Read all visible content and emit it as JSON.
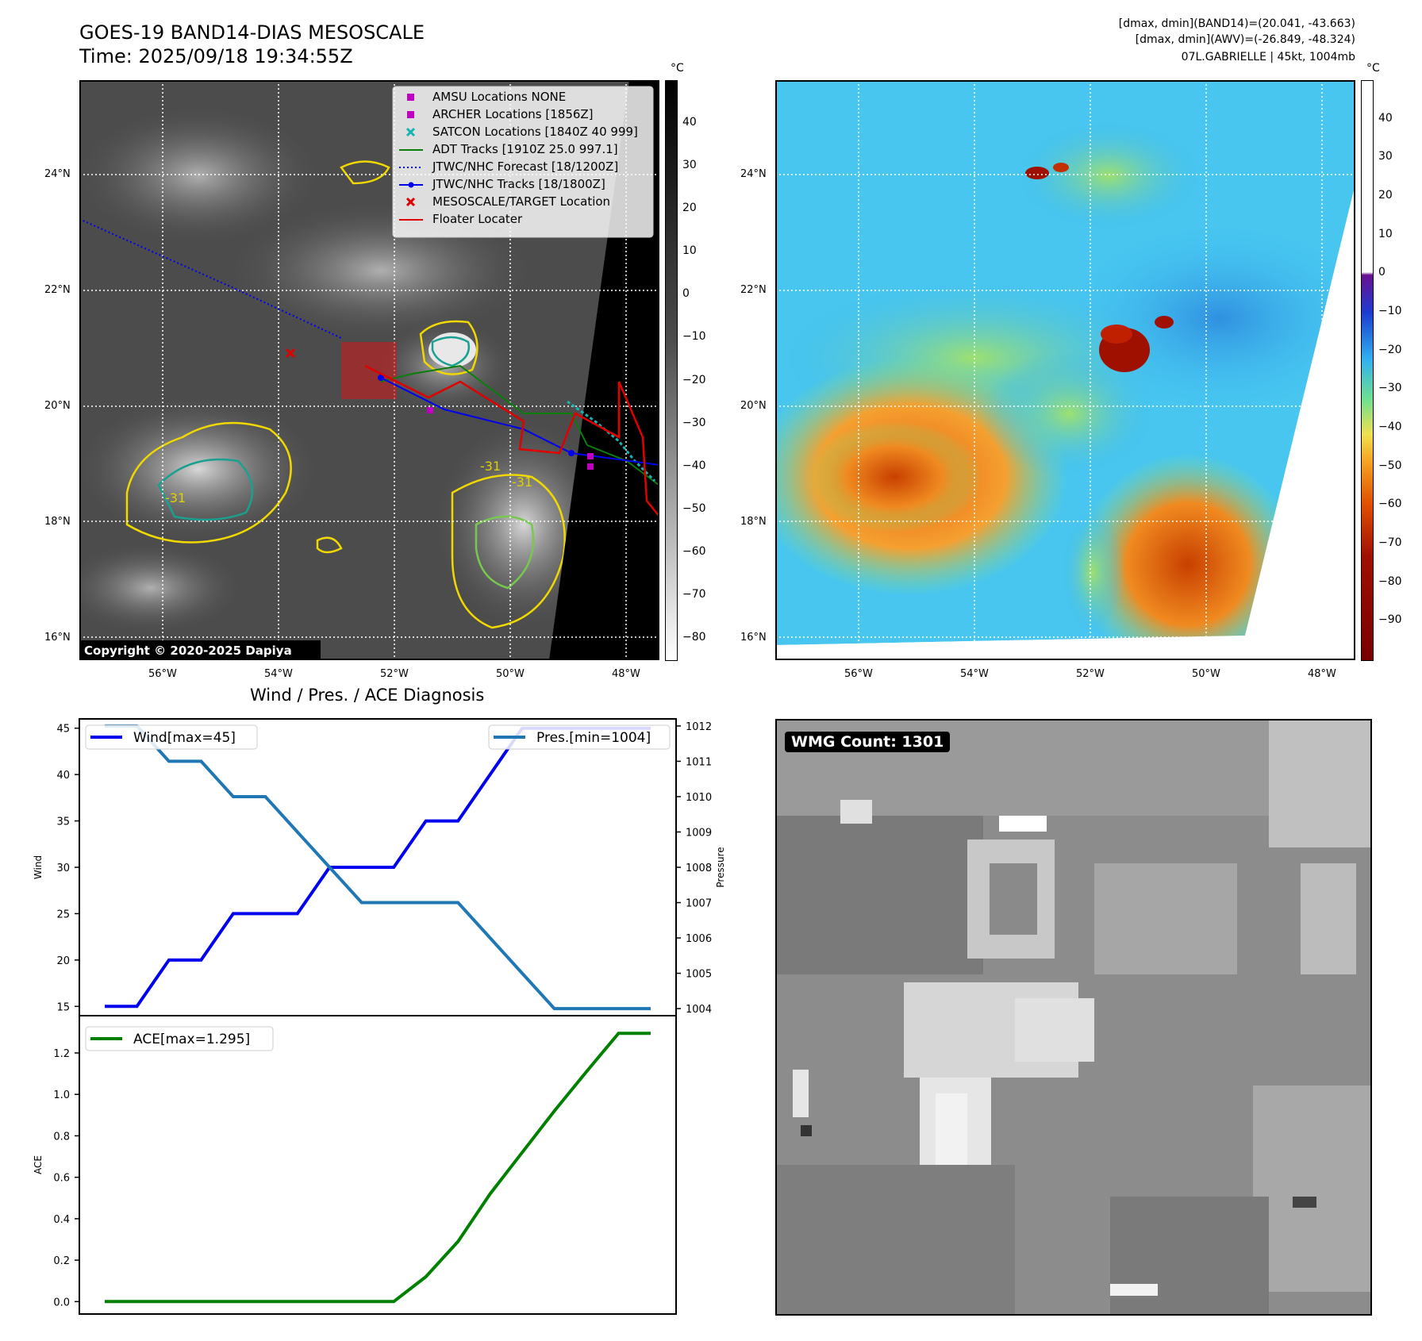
{
  "header": {
    "title_line1": "GOES-19 BAND14-DIAS MESOSCALE",
    "title_line2": "Time: 2025/09/18 19:34:55Z",
    "right_line1": "[dmax, dmin](BAND14)=(20.041, -43.663)",
    "right_line2": "[dmax, dmin](AWV)=(-26.849, -48.324)",
    "right_line3": "07L.GABRIELLE | 45kt, 1004mb"
  },
  "map_left": {
    "lat_labels": [
      "24°N",
      "22°N",
      "20°N",
      "18°N",
      "16°N"
    ],
    "lon_labels": [
      "56°W",
      "54°W",
      "52°W",
      "50°W",
      "48°W"
    ],
    "copyright": "Copyright © 2020-2025 Dapiya",
    "contour_labels": [
      "-31",
      "-31",
      "-31"
    ],
    "legend": [
      {
        "label": "AMSU Locations NONE",
        "color": "#c000c0",
        "marker": "square"
      },
      {
        "label": "ARCHER Locations [1856Z]",
        "color": "#c000c0",
        "marker": "square"
      },
      {
        "label": "SATCON Locations [1840Z 40 999]",
        "color": "#17b3b3",
        "marker": "x"
      },
      {
        "label": "ADT Tracks [1910Z 25.0 997.1]",
        "color": "#0a7d0a",
        "marker": "line"
      },
      {
        "label": "JTWC/NHC Forecast [18/1200Z]",
        "color": "#0000ee",
        "marker": "dotted"
      },
      {
        "label": "JTWC/NHC Tracks [18/1800Z]",
        "color": "#0000ee",
        "marker": "line-dot"
      },
      {
        "label": "MESOSCALE/TARGET Location",
        "color": "#e00000",
        "marker": "x"
      },
      {
        "label": "Floater Locater",
        "color": "#e00000",
        "marker": "line"
      }
    ],
    "colorbar": {
      "unit": "°C",
      "ticks": [
        "40",
        "30",
        "20",
        "10",
        "0",
        "−10",
        "−20",
        "−30",
        "−40",
        "−50",
        "−60",
        "−70",
        "−80"
      ],
      "range": [
        -85,
        50
      ]
    }
  },
  "map_right": {
    "lat_labels": [
      "24°N",
      "22°N",
      "20°N",
      "18°N",
      "16°N"
    ],
    "lon_labels": [
      "56°W",
      "54°W",
      "52°W",
      "50°W",
      "48°W"
    ],
    "colorbar": {
      "unit": "°C",
      "ticks": [
        "40",
        "30",
        "20",
        "10",
        "0",
        "−10",
        "−20",
        "−30",
        "−40",
        "−50",
        "−60",
        "−70",
        "−80",
        "−90"
      ],
      "range": [
        -100,
        50
      ]
    }
  },
  "wmg": {
    "label": "WMG Count: 1301"
  },
  "chart_data": [
    {
      "type": "line",
      "title": "Wind / Pres. / ACE Diagnosis",
      "x": [
        0,
        1,
        2,
        3,
        4,
        5,
        6,
        7,
        8,
        9,
        10,
        11,
        12,
        13,
        14,
        15,
        16,
        17
      ],
      "series": [
        {
          "name": "Wind[max=45]",
          "axis": "left",
          "color": "#0000ee",
          "values": [
            15,
            15,
            20,
            20,
            25,
            25,
            25,
            30,
            30,
            30,
            35,
            35,
            40,
            45,
            45,
            45,
            45,
            45
          ]
        },
        {
          "name": "Pres.[min=1004]",
          "axis": "right",
          "color": "#1f77b4",
          "values": [
            1012,
            1012,
            1011,
            1011,
            1010,
            1010,
            1009,
            1008,
            1007,
            1007,
            1007,
            1007,
            1006,
            1005,
            1004,
            1004,
            1004,
            1004
          ]
        }
      ],
      "ylabel": "Wind",
      "ylabel_right": "Pressure",
      "ylim": [
        14,
        46
      ],
      "ylim_right": [
        1003.8,
        1012.2
      ],
      "yticks": [
        15,
        20,
        25,
        30,
        35,
        40,
        45
      ],
      "yticks_right": [
        1004,
        1005,
        1006,
        1007,
        1008,
        1009,
        1010,
        1011,
        1012
      ]
    },
    {
      "type": "line",
      "x": [
        0,
        1,
        2,
        3,
        4,
        5,
        6,
        7,
        8,
        9,
        10,
        11,
        12,
        13,
        14,
        15,
        16,
        17
      ],
      "series": [
        {
          "name": "ACE[max=1.295]",
          "color": "#008000",
          "values": [
            0,
            0,
            0,
            0,
            0,
            0,
            0,
            0,
            0,
            0,
            0.12,
            0.29,
            0.52,
            0.72,
            0.92,
            1.11,
            1.295,
            1.295
          ]
        }
      ],
      "ylabel": "ACE",
      "ylim": [
        -0.06,
        1.38
      ],
      "yticks": [
        0.0,
        0.2,
        0.4,
        0.6,
        0.8,
        1.0,
        1.2
      ],
      "ytick_labels": [
        "0.0",
        "0.2",
        "0.4",
        "0.6",
        "0.8",
        "1.0",
        "1.2"
      ]
    }
  ]
}
